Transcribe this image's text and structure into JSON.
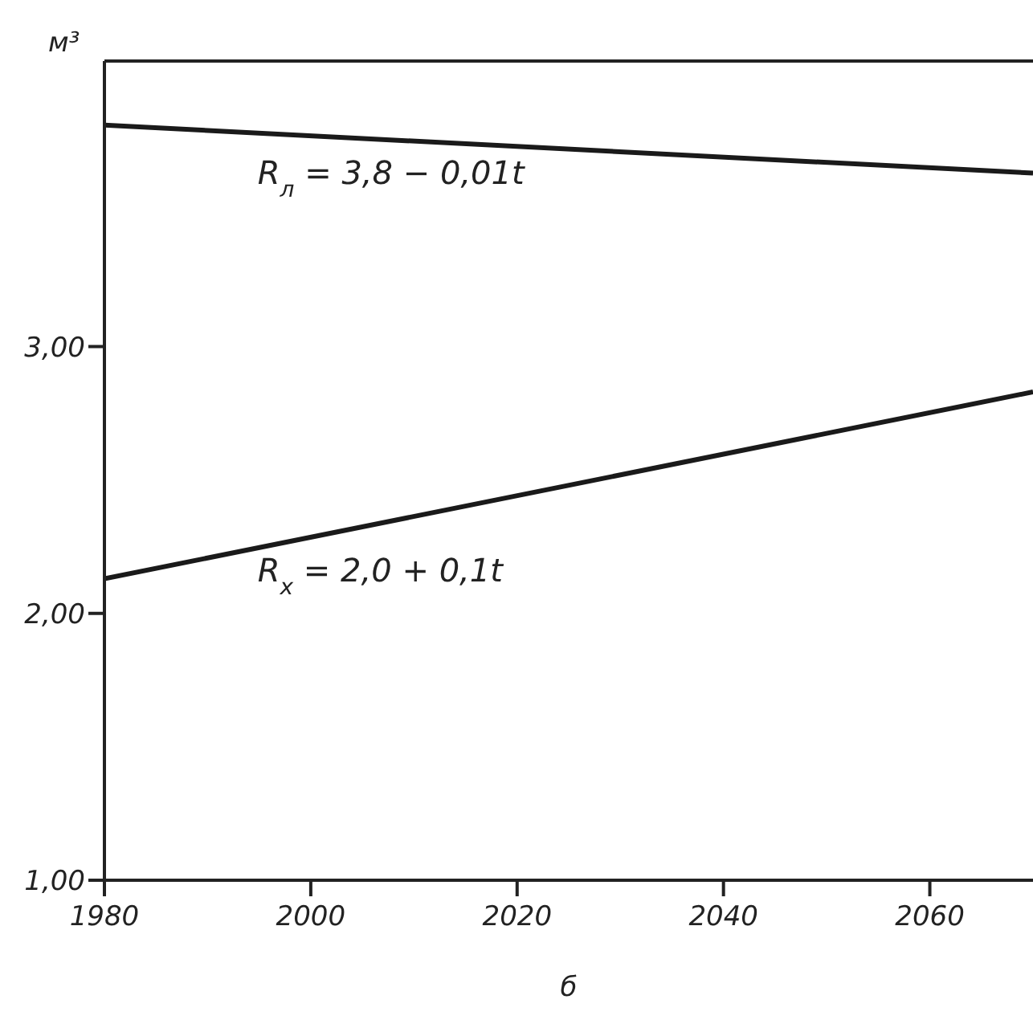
{
  "chart_data": {
    "type": "line",
    "xlabel": "б",
    "ylabel": "м³",
    "xlim": [
      1980,
      2070
    ],
    "xticks": [
      1980,
      2000,
      2020,
      2040,
      2060
    ],
    "ylim": [
      1,
      4.07
    ],
    "yticks": [
      {
        "value": 1,
        "label": "1,00"
      },
      {
        "value": 2,
        "label": "2,00"
      },
      {
        "value": 3,
        "label": "3,00"
      }
    ],
    "x": [
      1980,
      2070
    ],
    "series": [
      {
        "color": "#1a1a1a",
        "values": [
          3.83,
          3.65
        ]
      },
      {
        "color": "#1a1a1a",
        "values": [
          2.13,
          2.83
        ]
      }
    ],
    "annotations": [
      "R$_{л}$ = 3,8 − 0,01t",
      "R$_{x}$ = 2,0 + 0,1t"
    ],
    "grid": false,
    "legend": false,
    "marker": "none",
    "line_style": "solid"
  }
}
